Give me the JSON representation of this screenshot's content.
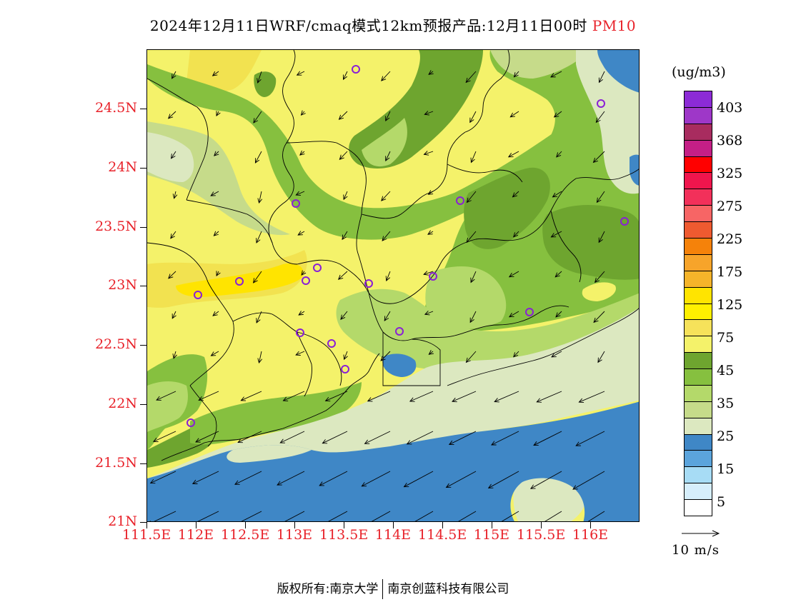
{
  "title": {
    "main": "2024年12月11日WRF/cmaq模式12km预报产品:12月11日00时",
    "product": "PM10"
  },
  "axes": {
    "lat_labels": [
      "24.5N",
      "24N",
      "23.5N",
      "23N",
      "22.5N",
      "22N",
      "21.5N",
      "21N"
    ],
    "lon_labels": [
      "111.5E",
      "112E",
      "112.5E",
      "113E",
      "113.5E",
      "114E",
      "114.5E",
      "115E",
      "115.5E",
      "116E"
    ]
  },
  "colorbar": {
    "unit": "(ug/m3)",
    "labels": [
      "403",
      "368",
      "325",
      "275",
      "225",
      "175",
      "125",
      "75",
      "45",
      "35",
      "25",
      "15",
      "5"
    ],
    "colors": [
      "#8c2bd6",
      "#9e37c8",
      "#a82c5f",
      "#c41f86",
      "#ff0000",
      "#f0154d",
      "#f2305a",
      "#f76565",
      "#ef5a30",
      "#f5820a",
      "#f7a42a",
      "#f5b42a",
      "#ffe400",
      "#fff000",
      "#f6e25a",
      "#f4f26a",
      "#6ea52f",
      "#86c03f",
      "#b4d96a",
      "#c6db8a",
      "#dce8c0",
      "#3f87c6",
      "#5ba4dc",
      "#a7dcf5",
      "#d6eefb",
      "#ffffff"
    ]
  },
  "wind_reference": {
    "label": "10 m/s"
  },
  "monitoring_stations_marker": "purple-circle",
  "footer": {
    "left": "版权所有:南京大学",
    "right": "南京创蓝科技有限公司"
  }
}
